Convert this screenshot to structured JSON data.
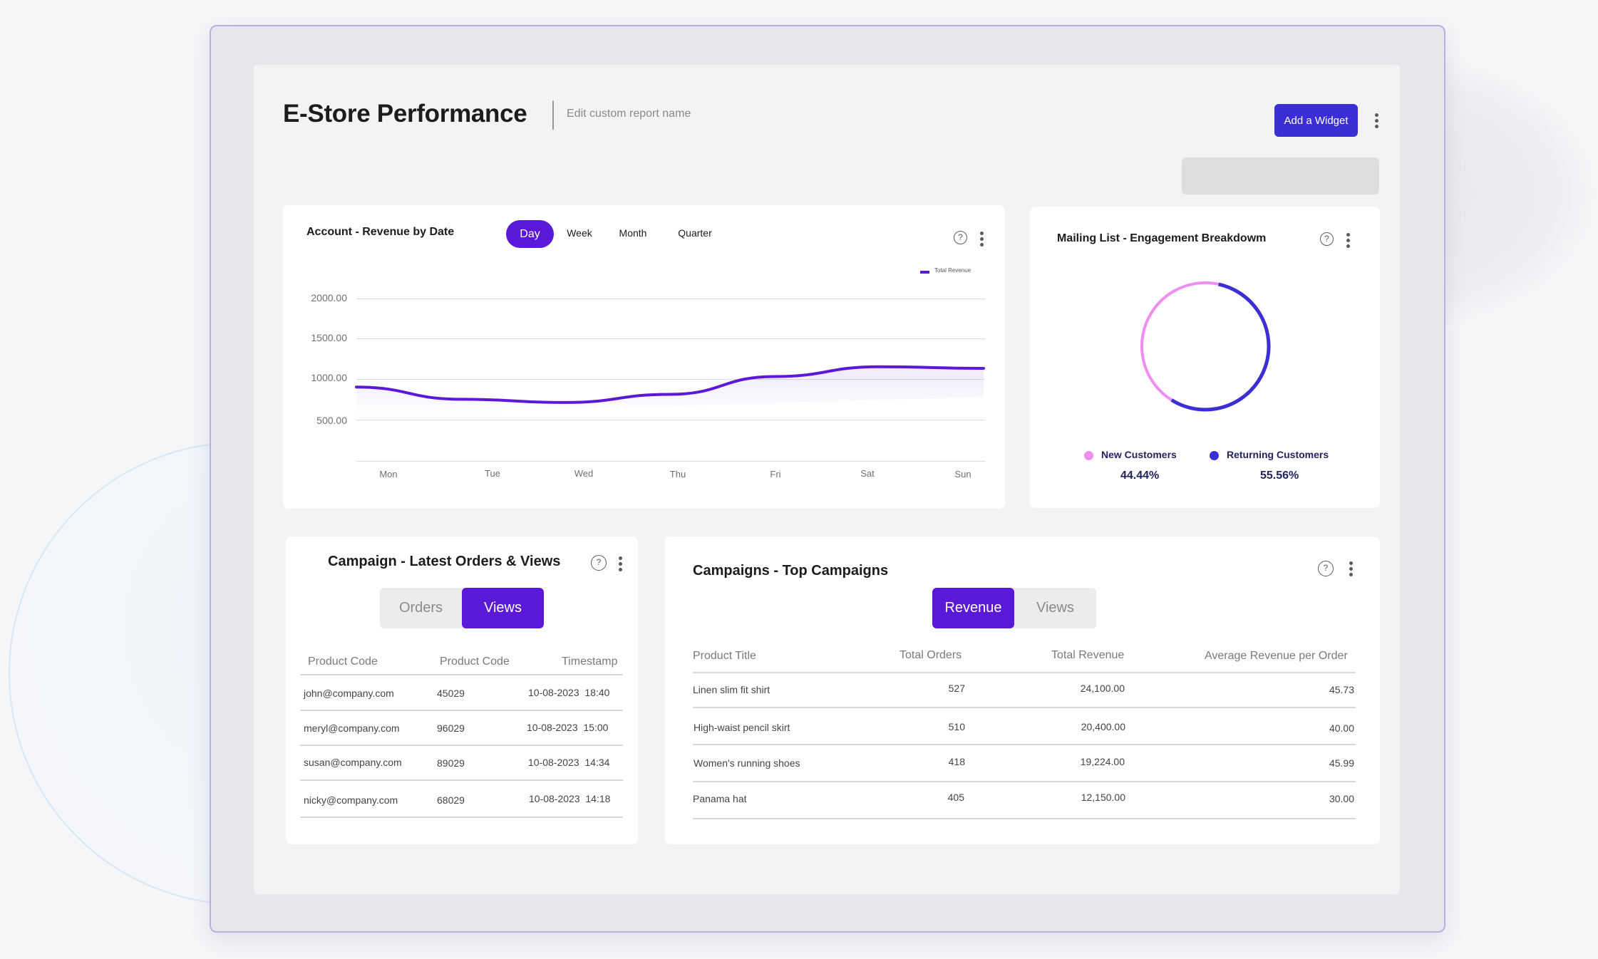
{
  "header": {
    "title": "E-Store Performance",
    "edit_label": "Edit custom report name",
    "add_widget_label": "Add a Widget"
  },
  "revenue_card": {
    "title": "Account - Revenue by Date",
    "tabs": [
      "Day",
      "Week",
      "Month",
      "Quarter"
    ],
    "active_tab": "Day",
    "help_icon": "help-icon",
    "menu_icon": "kebab-icon"
  },
  "chart_data": {
    "type": "line",
    "title": "Account - Revenue by Date",
    "categories": [
      "Mon",
      "Tue",
      "Wed",
      "Thu",
      "Fri",
      "Sat",
      "Sun"
    ],
    "series": [
      {
        "name": "Total Revenue",
        "values": [
          910,
          760,
          720,
          820,
          1040,
          1160,
          1140
        ],
        "color": "#5b18d8"
      }
    ],
    "y_ticks": [
      "2000.00",
      "1500.00",
      "1000.00",
      "500.00"
    ],
    "ylim": [
      0,
      2000
    ],
    "grid": true,
    "legend": "top-right"
  },
  "mailing_card": {
    "title": "Mailing List - Engagement Breakdowm",
    "segments": [
      {
        "label": "New Customers",
        "percent": "44.44%",
        "value": 44.44,
        "color": "#ef8ef0"
      },
      {
        "label": "Returning Customers",
        "percent": "55.56%",
        "value": 55.56,
        "color": "#3a2fd4"
      }
    ]
  },
  "orders_card": {
    "title": "Campaign - Latest Orders & Views",
    "toggle": [
      "Orders",
      "Views"
    ],
    "active": "Views",
    "columns": [
      "Product Code",
      "Product Code",
      "Timestamp"
    ],
    "rows": [
      {
        "email": "john@company.com",
        "code": "45029",
        "time": "10-08-2023  18:40"
      },
      {
        "email": "meryl@company.com",
        "code": "96029",
        "time": "10-08-2023  15:00"
      },
      {
        "email": "susan@company.com",
        "code": "89029",
        "time": "10-08-2023  14:34"
      },
      {
        "email": "nicky@company.com",
        "code": "68029",
        "time": "10-08-2023  14:18"
      }
    ]
  },
  "campaigns_card": {
    "title": "Campaigns - Top Campaigns",
    "toggle": [
      "Revenue",
      "Views"
    ],
    "active": "Revenue",
    "columns": [
      "Product Title",
      "Total Orders",
      "Total Revenue",
      "Average Revenue per Order"
    ],
    "rows": [
      {
        "title": "Linen slim fit shirt",
        "orders": "527",
        "revenue": "24,100.00",
        "avg": "45.73"
      },
      {
        "title": "High-waist pencil skirt",
        "orders": "510",
        "revenue": "20,400.00",
        "avg": "40.00"
      },
      {
        "title": "Women's running shoes",
        "orders": "418",
        "revenue": "19,224.00",
        "avg": "45.99"
      },
      {
        "title": "Panama hat",
        "orders": "405",
        "revenue": "12,150.00",
        "avg": "30.00"
      }
    ]
  }
}
